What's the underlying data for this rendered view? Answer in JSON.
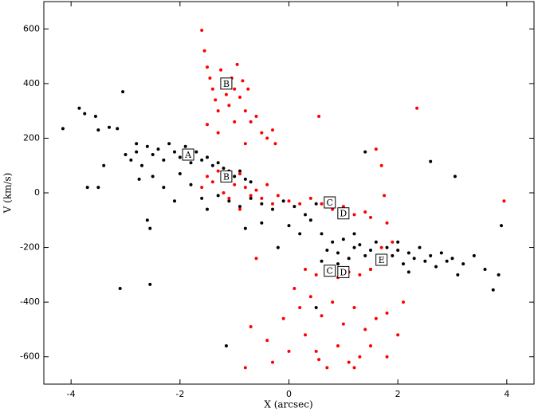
{
  "chart_data": {
    "type": "scatter",
    "xlabel": "X (arcsec)",
    "ylabel": "V (km/s)",
    "xlim": [
      -4.5,
      4.5
    ],
    "ylim": [
      -700,
      700
    ],
    "xticks": [
      -4,
      -2,
      0,
      2,
      4
    ],
    "yticks": [
      -600,
      -400,
      -200,
      0,
      200,
      400,
      600
    ],
    "series": [
      {
        "color": "#000000",
        "x": [
          -4.15,
          -3.85,
          -3.75,
          -3.55,
          -3.5,
          -3.3,
          -3.15,
          -3.05,
          -3.4,
          -3.7,
          -3.5,
          -2.75,
          -2.6,
          -2.55,
          -2.55,
          -3.1,
          -1.15,
          -3,
          -2.9,
          -2.8,
          -2.7,
          -2.6,
          -2.5,
          -2.4,
          -2.3,
          -2.2,
          -2.1,
          -2,
          -1.9,
          -1.8,
          -1.7,
          -1.6,
          -1.5,
          -1.4,
          -1.3,
          -1.2,
          -1.1,
          -1,
          -0.9,
          -0.8,
          -0.7,
          -2.5,
          -2.3,
          -2.1,
          -2,
          -1.8,
          -1.6,
          -1.5,
          -1.3,
          -1.1,
          -0.9,
          -0.7,
          -0.5,
          -0.3,
          -0.1,
          0.1,
          0.3,
          0.5,
          0.4,
          0.2,
          0,
          -0.2,
          -0.5,
          -0.8,
          0.6,
          0.8,
          0.9,
          1,
          1.1,
          1.2,
          1.3,
          1.4,
          1.5,
          1.6,
          1.7,
          1.8,
          1.9,
          2,
          2.1,
          2.2,
          2.3,
          2.4,
          2.5,
          2.6,
          2.7,
          2.8,
          2.9,
          3,
          3.1,
          3.2,
          0.7,
          0.6,
          0.9,
          1.5,
          2.2,
          3.4,
          3.6,
          3.75,
          3.85,
          3.9,
          3.05,
          2.6,
          1.4,
          0.5,
          -2.8,
          2.0,
          1.2
        ],
        "values": [
          235,
          310,
          290,
          280,
          230,
          240,
          235,
          370,
          100,
          20,
          20,
          50,
          -100,
          -130,
          -335,
          -350,
          -560,
          140,
          120,
          150,
          100,
          170,
          140,
          160,
          120,
          180,
          150,
          130,
          170,
          110,
          150,
          120,
          130,
          100,
          110,
          90,
          80,
          60,
          80,
          50,
          40,
          60,
          20,
          -30,
          70,
          30,
          -20,
          -60,
          -10,
          -30,
          -50,
          -20,
          -40,
          -60,
          -30,
          -50,
          -80,
          -40,
          -100,
          -150,
          -120,
          -200,
          -110,
          -130,
          -150,
          -180,
          -220,
          -170,
          -240,
          -200,
          -190,
          -230,
          -210,
          -180,
          -250,
          -200,
          -230,
          -210,
          -260,
          -220,
          -240,
          -200,
          -250,
          -230,
          -270,
          -220,
          -250,
          -240,
          -300,
          -260,
          -210,
          -250,
          -260,
          -280,
          -290,
          -230,
          -280,
          -355,
          -300,
          -120,
          60,
          115,
          150,
          -420,
          180,
          -180,
          -150
        ]
      },
      {
        "color": "#ff0000",
        "x": [
          -1.6,
          -1.55,
          -1.5,
          -1.45,
          -1.4,
          -1.35,
          -1.3,
          -1.25,
          -1.2,
          -1.15,
          -1.1,
          -1.05,
          -1,
          -0.95,
          -0.9,
          -0.85,
          -0.8,
          -0.75,
          -0.7,
          -0.6,
          -0.5,
          -0.4,
          -0.3,
          -0.25,
          -1.5,
          -1.3,
          -1.0,
          -0.8,
          0.55,
          2.35,
          -1.6,
          -1.5,
          -1.4,
          -1.3,
          -1.2,
          -1.1,
          -1,
          -0.9,
          -0.8,
          -0.7,
          -0.6,
          -0.5,
          -0.4,
          -0.3,
          -0.2,
          0,
          0.2,
          0.4,
          0.6,
          0.8,
          1,
          1.2,
          1.4,
          1.5,
          1.6,
          1.7,
          1.75,
          1.8,
          3.95,
          -1.1,
          -0.9,
          0.3,
          0.5,
          0.7,
          0.9,
          1.1,
          1.3,
          1.5,
          1.7,
          1.9,
          0.1,
          0.2,
          0.4,
          0.6,
          0.8,
          1,
          1.2,
          1.4,
          1.6,
          1.8,
          2,
          2.1,
          0.3,
          0.5,
          0.7,
          0.9,
          1.1,
          1.3,
          1.5,
          1.8,
          -0.4,
          -0.3,
          -0.1,
          0.0,
          -0.8,
          -0.7,
          -0.6,
          0.55,
          1.2
        ],
        "values": [
          595,
          520,
          460,
          420,
          380,
          340,
          300,
          450,
          400,
          360,
          320,
          420,
          380,
          470,
          350,
          410,
          300,
          380,
          260,
          280,
          220,
          200,
          230,
          180,
          250,
          220,
          260,
          180,
          280,
          310,
          20,
          60,
          40,
          80,
          0,
          50,
          30,
          70,
          20,
          -10,
          10,
          -20,
          30,
          -40,
          -10,
          -30,
          -40,
          -20,
          -40,
          -60,
          -50,
          -80,
          -70,
          -90,
          160,
          100,
          -10,
          -110,
          -30,
          -20,
          -60,
          -280,
          -300,
          -290,
          -310,
          -290,
          -300,
          -280,
          -200,
          -180,
          -350,
          -420,
          -380,
          -450,
          -400,
          -480,
          -420,
          -500,
          -460,
          -440,
          -520,
          -400,
          -520,
          -580,
          -640,
          -560,
          -620,
          -600,
          -560,
          -600,
          -540,
          -620,
          -460,
          -580,
          -640,
          -490,
          -240,
          -610,
          -640
        ]
      }
    ],
    "annotations": [
      {
        "text": "A",
        "x": -1.85,
        "y": 140
      },
      {
        "text": "B",
        "x": -1.15,
        "y": 400
      },
      {
        "text": "B",
        "x": -1.15,
        "y": 60
      },
      {
        "text": "C",
        "x": 0.75,
        "y": -35
      },
      {
        "text": "D",
        "x": 1.0,
        "y": -75
      },
      {
        "text": "C",
        "x": 0.75,
        "y": -285
      },
      {
        "text": "D",
        "x": 1.0,
        "y": -290
      },
      {
        "text": "E",
        "x": 1.7,
        "y": -245
      }
    ]
  }
}
